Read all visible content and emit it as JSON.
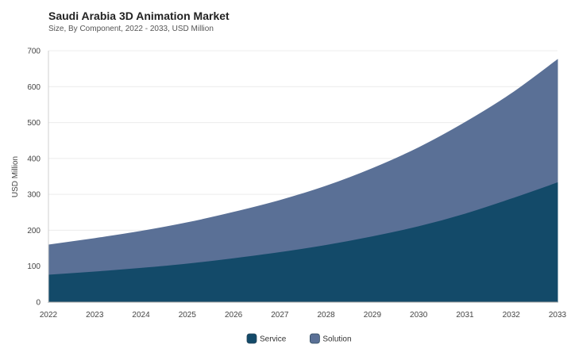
{
  "chart_data": {
    "type": "area",
    "stacked": true,
    "title": "Saudi Arabia 3D Animation Market",
    "subtitle": "Size, By Component, 2022 - 2033, USD Million",
    "xlabel": "",
    "ylabel": "USD Million",
    "ylim": [
      0,
      700
    ],
    "yticks": [
      0,
      100,
      200,
      300,
      400,
      500,
      600,
      700
    ],
    "x": [
      "2022",
      "2023",
      "2024",
      "2025",
      "2026",
      "2027",
      "2028",
      "2029",
      "2030",
      "2031",
      "2032",
      "2033"
    ],
    "grid": true,
    "legend_position": "bottom",
    "series": [
      {
        "name": "Service",
        "color": "#134a69",
        "values": [
          75,
          84,
          94,
          106,
          121,
          138,
          158,
          182,
          210,
          245,
          287,
          332
        ]
      },
      {
        "name": "Solution",
        "color": "#5a7096",
        "values": [
          84,
          93,
          103,
          115,
          129,
          145,
          165,
          190,
          220,
          255,
          293,
          343
        ]
      }
    ]
  }
}
